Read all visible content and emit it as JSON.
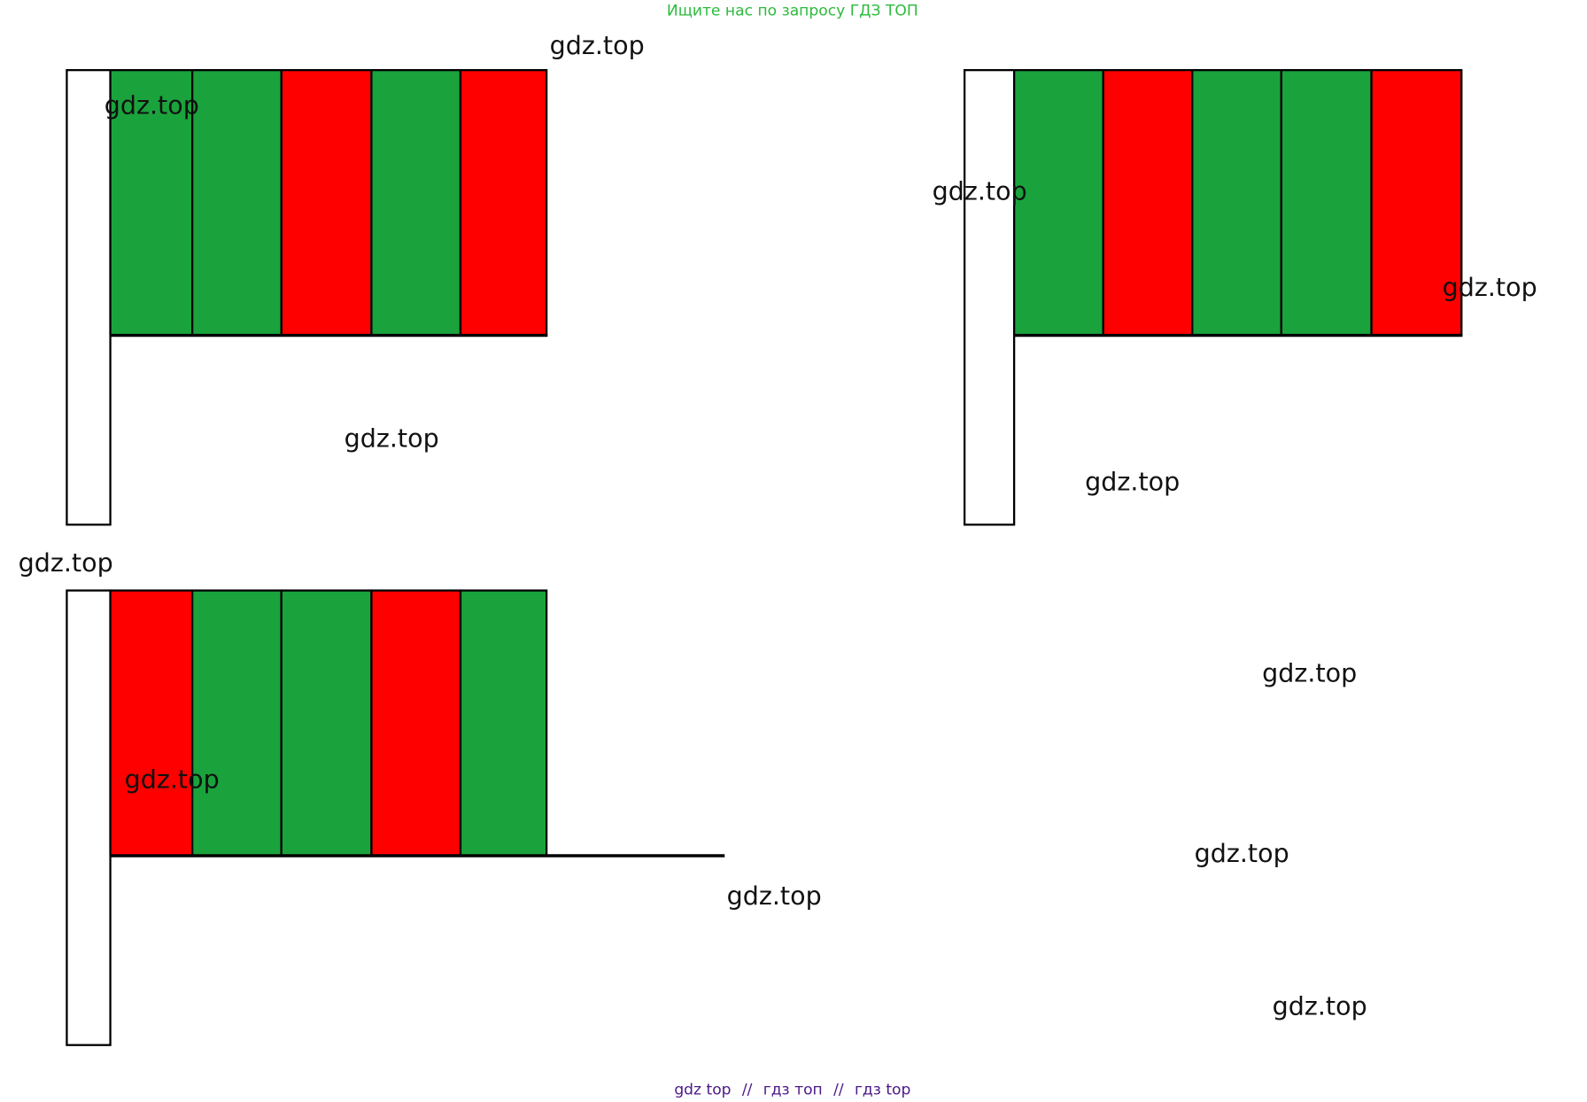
{
  "header": {
    "text": "Ищите нас по запросу ГДЗ ТОП"
  },
  "watermarks": [
    "gdz.top",
    "gdz.top",
    "gdz.top",
    "gdz.top",
    "gdz.top",
    "gdz.top",
    "gdz.top",
    "gdz.top",
    "gdz.top",
    "gdz.top",
    "gdz.top",
    "gdz.top"
  ],
  "footer": {
    "links": [
      "gdz top",
      "гдз топ",
      "гдз top"
    ],
    "separators": [
      "//",
      "//"
    ]
  }
}
